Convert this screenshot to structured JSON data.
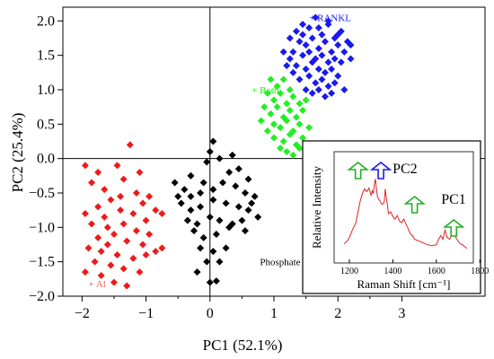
{
  "chart_data": {
    "type": "scatter",
    "xlabel": "PC1 (52.1%)",
    "ylabel": "PC2 (25.4%)",
    "xlim": [
      -2.3,
      4.3
    ],
    "ylim": [
      -2.0,
      2.2
    ],
    "x_ticks": [
      -2,
      -1,
      0,
      1,
      2,
      3
    ],
    "x_tick_labels": [
      "−2",
      "−1",
      "0",
      "1",
      "2",
      "3"
    ],
    "y_ticks": [
      -2.0,
      -1.5,
      -1.0,
      -0.5,
      0.0,
      0.5,
      1.0,
      1.5,
      2.0
    ],
    "y_tick_labels": [
      "−2.0",
      "−1.5",
      "−1.0",
      "−0.5",
      "0.0",
      "0.5",
      "1.0",
      "1.5",
      "2.0"
    ],
    "reference_lines": {
      "x": 0,
      "y": 0
    },
    "marker": "diamond",
    "series": [
      {
        "name": "+ RANKL",
        "color": "#1a1aee",
        "points": [
          [
            1.35,
            1.85
          ],
          [
            1.45,
            1.95
          ],
          [
            1.55,
            1.9
          ],
          [
            1.65,
            2.05
          ],
          [
            1.75,
            1.8
          ],
          [
            1.85,
            1.95
          ],
          [
            1.95,
            1.75
          ],
          [
            2.05,
            1.85
          ],
          [
            2.15,
            1.7
          ],
          [
            1.25,
            1.75
          ],
          [
            1.4,
            1.7
          ],
          [
            1.5,
            1.65
          ],
          [
            1.6,
            1.75
          ],
          [
            1.7,
            1.6
          ],
          [
            1.8,
            1.7
          ],
          [
            1.9,
            1.55
          ],
          [
            2.0,
            1.65
          ],
          [
            2.1,
            1.55
          ],
          [
            2.2,
            1.65
          ],
          [
            1.3,
            1.55
          ],
          [
            1.45,
            1.5
          ],
          [
            1.55,
            1.55
          ],
          [
            1.65,
            1.45
          ],
          [
            1.75,
            1.5
          ],
          [
            1.85,
            1.4
          ],
          [
            1.95,
            1.45
          ],
          [
            2.05,
            1.4
          ],
          [
            1.35,
            1.35
          ],
          [
            1.5,
            1.3
          ],
          [
            1.6,
            1.4
          ],
          [
            1.7,
            1.3
          ],
          [
            1.8,
            1.25
          ],
          [
            1.9,
            1.3
          ],
          [
            2.0,
            1.2
          ],
          [
            1.25,
            1.45
          ],
          [
            1.4,
            1.15
          ],
          [
            1.55,
            1.2
          ],
          [
            1.65,
            1.1
          ],
          [
            1.75,
            1.15
          ],
          [
            1.85,
            1.05
          ],
          [
            1.95,
            1.1
          ],
          [
            1.6,
            0.95
          ],
          [
            1.7,
            1.0
          ],
          [
            1.8,
            0.9
          ],
          [
            1.3,
            1.25
          ],
          [
            2.1,
            1.0
          ],
          [
            1.15,
            1.55
          ],
          [
            1.9,
            0.95
          ],
          [
            1.5,
            1.0
          ],
          [
            1.45,
            1.8
          ],
          [
            1.7,
            1.9
          ],
          [
            2.2,
            1.45
          ],
          [
            1.2,
            1.35
          ],
          [
            1.85,
            2.0
          ],
          [
            2.0,
            1.8
          ]
        ]
      },
      {
        "name": "+ Both",
        "color": "#22ee22",
        "points": [
          [
            0.95,
            1.15
          ],
          [
            1.05,
            1.05
          ],
          [
            1.15,
            1.15
          ],
          [
            1.25,
            1.0
          ],
          [
            0.9,
            0.95
          ],
          [
            1.0,
            0.85
          ],
          [
            1.1,
            0.95
          ],
          [
            1.2,
            0.8
          ],
          [
            1.3,
            0.9
          ],
          [
            1.4,
            0.8
          ],
          [
            0.85,
            0.75
          ],
          [
            0.95,
            0.65
          ],
          [
            1.05,
            0.75
          ],
          [
            1.15,
            0.6
          ],
          [
            1.25,
            0.7
          ],
          [
            1.35,
            0.6
          ],
          [
            1.45,
            0.7
          ],
          [
            1.0,
            0.5
          ],
          [
            1.1,
            0.45
          ],
          [
            1.2,
            0.55
          ],
          [
            1.3,
            0.4
          ],
          [
            1.4,
            0.5
          ],
          [
            0.9,
            0.4
          ],
          [
            1.0,
            0.3
          ],
          [
            1.15,
            0.25
          ],
          [
            1.25,
            0.35
          ],
          [
            1.35,
            0.2
          ],
          [
            1.45,
            0.3
          ],
          [
            1.55,
            0.45
          ],
          [
            1.2,
            0.1
          ],
          [
            1.3,
            0.05
          ],
          [
            1.4,
            0.15
          ],
          [
            0.8,
            0.55
          ],
          [
            1.5,
            0.85
          ],
          [
            1.1,
            0.15
          ]
        ]
      },
      {
        "name": "Phosphate",
        "color": "#000000",
        "points": [
          [
            0.05,
            0.25
          ],
          [
            0.0,
            0.1
          ],
          [
            -0.05,
            -0.05
          ],
          [
            0.15,
            0.0
          ],
          [
            0.35,
            0.05
          ],
          [
            -0.55,
            -0.35
          ],
          [
            -0.4,
            -0.45
          ],
          [
            -0.3,
            -0.55
          ],
          [
            -0.15,
            -0.5
          ],
          [
            0.05,
            -0.45
          ],
          [
            0.2,
            -0.35
          ],
          [
            0.4,
            -0.4
          ],
          [
            0.55,
            -0.5
          ],
          [
            0.7,
            -0.55
          ],
          [
            -0.45,
            -0.65
          ],
          [
            -0.3,
            -0.75
          ],
          [
            -0.15,
            -0.7
          ],
          [
            0.05,
            -0.6
          ],
          [
            0.25,
            -0.65
          ],
          [
            0.45,
            -0.7
          ],
          [
            0.6,
            -0.75
          ],
          [
            0.75,
            -0.85
          ],
          [
            -0.35,
            -0.9
          ],
          [
            -0.2,
            -0.95
          ],
          [
            0.0,
            -0.85
          ],
          [
            0.15,
            -0.9
          ],
          [
            0.35,
            -0.95
          ],
          [
            0.5,
            -0.9
          ],
          [
            -0.25,
            -1.05
          ],
          [
            -0.1,
            -1.15
          ],
          [
            0.1,
            -1.1
          ],
          [
            0.3,
            -1.0
          ],
          [
            -0.15,
            -1.3
          ],
          [
            0.05,
            -1.35
          ],
          [
            0.25,
            -1.3
          ],
          [
            -0.05,
            -1.5
          ],
          [
            0.15,
            -1.5
          ],
          [
            -0.2,
            -1.65
          ],
          [
            0.0,
            -1.8
          ],
          [
            0.1,
            -1.78
          ],
          [
            -0.3,
            -0.25
          ],
          [
            0.3,
            -0.2
          ],
          [
            0.6,
            -0.3
          ],
          [
            -0.5,
            -0.55
          ],
          [
            0.55,
            -1.05
          ],
          [
            0.65,
            -0.65
          ],
          [
            -0.1,
            -0.35
          ],
          [
            0.45,
            -0.15
          ]
        ]
      },
      {
        "name": "+ Al",
        "color": "#ee1a1a",
        "points": [
          [
            -1.95,
            -0.1
          ],
          [
            -1.75,
            -0.2
          ],
          [
            -1.45,
            -0.1
          ],
          [
            -1.25,
            0.2
          ],
          [
            -1.85,
            -0.35
          ],
          [
            -1.65,
            -0.45
          ],
          [
            -1.35,
            -0.3
          ],
          [
            -1.1,
            -0.2
          ],
          [
            -0.95,
            -0.55
          ],
          [
            -1.15,
            -0.5
          ],
          [
            -1.55,
            -0.6
          ],
          [
            -1.75,
            -0.7
          ],
          [
            -1.95,
            -0.8
          ],
          [
            -1.65,
            -0.85
          ],
          [
            -1.4,
            -0.75
          ],
          [
            -1.2,
            -0.8
          ],
          [
            -1.0,
            -0.9
          ],
          [
            -0.85,
            -0.75
          ],
          [
            -0.75,
            -0.8
          ],
          [
            -1.85,
            -0.95
          ],
          [
            -1.6,
            -1.0
          ],
          [
            -1.35,
            -0.95
          ],
          [
            -1.15,
            -1.05
          ],
          [
            -0.95,
            -1.1
          ],
          [
            -1.75,
            -1.15
          ],
          [
            -1.5,
            -1.1
          ],
          [
            -1.3,
            -1.2
          ],
          [
            -1.05,
            -1.25
          ],
          [
            -0.85,
            -1.35
          ],
          [
            -0.75,
            -1.3
          ],
          [
            -1.9,
            -1.3
          ],
          [
            -1.7,
            -1.35
          ],
          [
            -1.45,
            -1.4
          ],
          [
            -1.2,
            -1.45
          ],
          [
            -1.8,
            -1.5
          ],
          [
            -1.55,
            -1.55
          ],
          [
            -1.35,
            -1.6
          ],
          [
            -1.1,
            -1.65
          ],
          [
            -1.95,
            -1.65
          ],
          [
            -1.7,
            -1.7
          ],
          [
            -1.5,
            -1.8
          ],
          [
            -1.3,
            -1.85
          ],
          [
            -1.0,
            -1.4
          ],
          [
            -1.4,
            -0.55
          ],
          [
            -1.6,
            -1.25
          ],
          [
            -1.05,
            -0.65
          ]
        ]
      }
    ],
    "annotations": [
      {
        "text": "+ RANKL",
        "color": "#1a1aee"
      },
      {
        "text": "+ Both",
        "color": "#22ee22"
      },
      {
        "text": "Phosphate",
        "color": "#000000"
      },
      {
        "text": "+ Al",
        "color": "#ee6060"
      }
    ],
    "inset": {
      "type": "line",
      "xlabel": "Raman Shift [cm⁻¹]",
      "ylabel": "Relative Intensity",
      "x_ticks": [
        1200,
        1400,
        1600,
        1800
      ],
      "x_tick_labels": [
        "1200",
        "1400",
        "1600",
        "1800"
      ],
      "xlim": [
        1130,
        1770
      ],
      "ylim": [
        0,
        1
      ],
      "line_color": "#e02020",
      "x": [
        1175,
        1190,
        1200,
        1210,
        1220,
        1230,
        1240,
        1250,
        1260,
        1270,
        1280,
        1290,
        1300,
        1305,
        1310,
        1315,
        1320,
        1325,
        1330,
        1340,
        1350,
        1360,
        1365,
        1370,
        1375,
        1380,
        1390,
        1400,
        1410,
        1420,
        1430,
        1440,
        1450,
        1460,
        1470,
        1480,
        1490,
        1500,
        1520,
        1540,
        1560,
        1580,
        1600,
        1610,
        1620,
        1630,
        1640,
        1650,
        1660,
        1670,
        1680,
        1690,
        1700,
        1710,
        1720,
        1730,
        1740
      ],
      "y": [
        0.15,
        0.18,
        0.22,
        0.28,
        0.33,
        0.38,
        0.5,
        0.62,
        0.7,
        0.75,
        0.72,
        0.76,
        0.68,
        0.73,
        0.7,
        0.8,
        0.86,
        0.74,
        0.66,
        0.62,
        0.58,
        0.6,
        0.75,
        0.65,
        0.58,
        0.48,
        0.5,
        0.45,
        0.42,
        0.46,
        0.4,
        0.38,
        0.42,
        0.37,
        0.32,
        0.26,
        0.24,
        0.2,
        0.18,
        0.16,
        0.14,
        0.13,
        0.14,
        0.2,
        0.24,
        0.2,
        0.3,
        0.22,
        0.2,
        0.24,
        0.3,
        0.22,
        0.18,
        0.15,
        0.14,
        0.12,
        0.1
      ],
      "markers": [
        {
          "label": "",
          "x": 1240,
          "color": "#22b022"
        },
        {
          "label": "PC2",
          "x": 1345,
          "color": "#1a1aee"
        },
        {
          "label": "",
          "x": 1500,
          "color": "#22b022"
        },
        {
          "label": "PC1",
          "x": 1680,
          "color": "#22b022"
        }
      ]
    }
  }
}
